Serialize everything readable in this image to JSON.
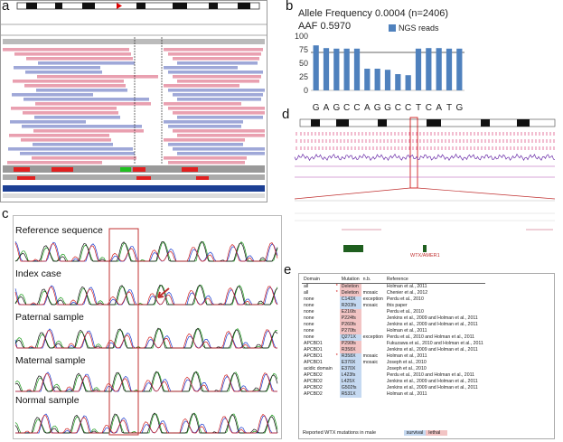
{
  "labels": {
    "a": "a",
    "b": "b",
    "c": "c",
    "d": "d",
    "e": "e"
  },
  "panel_b": {
    "line1": "Allele Frequency 0.0004 (n=2406)",
    "line2": "AAF 0.5970",
    "legend": "NGS reads",
    "series_color": "#4f81bd"
  },
  "chart_data": {
    "type": "bar",
    "categories": [
      "G",
      "A",
      "G",
      "C",
      "C",
      "A",
      "G",
      "G",
      "C",
      "C",
      "T",
      "C",
      "A",
      "T",
      "G"
    ],
    "values": [
      83,
      78,
      77,
      77,
      77,
      40,
      40,
      38,
      30,
      28,
      77,
      78,
      78,
      77,
      77
    ],
    "ylim": [
      0,
      100
    ],
    "yticks": [
      0,
      25,
      50,
      75,
      100
    ],
    "reference_line": 70,
    "xlabel": "",
    "ylabel": ""
  },
  "panel_c": {
    "traces": [
      "Reference sequence",
      "Index case",
      "Paternal sample",
      "Maternal sample",
      "Normal sample"
    ]
  },
  "panel_d": {
    "gene_label": "WTX/AMER1"
  },
  "panel_e": {
    "headers": [
      "Domain",
      "Mutation",
      "n.b.",
      "Reference"
    ],
    "rows": [
      {
        "domain": "all",
        "star": "*",
        "mutation": "Deletion",
        "nb": "",
        "ref": "Holman et al., 2011",
        "hl": "pink"
      },
      {
        "domain": "all",
        "star": "*",
        "mutation": "Deletion",
        "nb": "mosaic",
        "ref": "Chenier et al., 2012",
        "hl": "pink"
      },
      {
        "domain": "none",
        "star": "",
        "mutation": "C143X",
        "nb": "exception",
        "ref": "Perdu et al., 2010",
        "hl": "blue"
      },
      {
        "domain": "none",
        "star": "",
        "mutation": "R203fs",
        "nb": "mosaic",
        "ref": "this paper",
        "hl": "blue"
      },
      {
        "domain": "none",
        "star": "",
        "mutation": "E216fs",
        "nb": "",
        "ref": "Perdu et al., 2010",
        "hl": "pink"
      },
      {
        "domain": "none",
        "star": "",
        "mutation": "P224fs",
        "nb": "",
        "ref": "Jenkins et al., 2009 and Holman et al., 2011",
        "hl": "pink"
      },
      {
        "domain": "none",
        "star": "",
        "mutation": "P260fs",
        "nb": "",
        "ref": "Jenkins et al., 2009 and Holman et al., 2011",
        "hl": "pink"
      },
      {
        "domain": "none",
        "star": "",
        "mutation": "P270fs",
        "nb": "",
        "ref": "Holman et al., 2011",
        "hl": "pink"
      },
      {
        "domain": "none",
        "star": "",
        "mutation": "Q271X",
        "nb": "exception",
        "ref": "Perdu et al., 2010 and Holman et al., 2011",
        "hl": "blue"
      },
      {
        "domain": "APCBD1",
        "star": "",
        "mutation": "P290fs",
        "nb": "",
        "ref": "Fukuzawa et al., 2010 and Holman et al., 2011",
        "hl": "pink"
      },
      {
        "domain": "APCBD1",
        "star": "",
        "mutation": "R358X",
        "nb": "",
        "ref": "Jenkins et al., 2009 and Holman et al., 2011",
        "hl": "pink"
      },
      {
        "domain": "APCBD1",
        "star": "*",
        "mutation": "R358X",
        "nb": "mosaic",
        "ref": "Holman et al., 2011",
        "hl": "blue"
      },
      {
        "domain": "APCBD1",
        "star": "",
        "mutation": "E370X",
        "nb": "mosaic",
        "ref": "Joseph et al., 2010",
        "hl": "blue"
      },
      {
        "domain": "acidic domain",
        "star": "",
        "mutation": "E370X",
        "nb": "",
        "ref": "Joseph et al., 2010",
        "hl": "blue"
      },
      {
        "domain": "APCBD2",
        "star": "",
        "mutation": "L423fs",
        "nb": "",
        "ref": "Perdu et al., 2010 and Holman et al., 2011",
        "hl": "blue"
      },
      {
        "domain": "APCBD2",
        "star": "",
        "mutation": "L425X",
        "nb": "",
        "ref": "Jenkins et al., 2009 and Holman et al., 2011",
        "hl": "blue"
      },
      {
        "domain": "APCBD2",
        "star": "",
        "mutation": "G502fs",
        "nb": "",
        "ref": "Jenkins et al., 2009 and Holman et al., 2011",
        "hl": "blue"
      },
      {
        "domain": "APCBD2",
        "star": "",
        "mutation": "R531X",
        "nb": "",
        "ref": "Holman et al., 2011",
        "hl": "blue"
      }
    ],
    "footer": "Reported WTX mutations in male",
    "survival": "survival",
    "lethal": "lethal",
    "colors": {
      "blue": "#c5d9f1",
      "pink": "#f2c4c4"
    }
  }
}
